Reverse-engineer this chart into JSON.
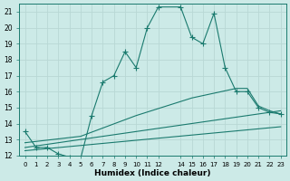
{
  "xlabel": "Humidex (Indice chaleur)",
  "bg_color": "#cceae7",
  "grid_color": "#b8d8d5",
  "line_color": "#1a7a6e",
  "ylim": [
    12,
    21.5
  ],
  "xlim": [
    -0.5,
    23.5
  ],
  "yticks": [
    12,
    13,
    14,
    15,
    16,
    17,
    18,
    19,
    20,
    21
  ],
  "xtick_positions": [
    0,
    1,
    2,
    3,
    4,
    5,
    6,
    7,
    8,
    9,
    10,
    11,
    12,
    14,
    15,
    16,
    17,
    18,
    19,
    20,
    21,
    22,
    23
  ],
  "xtick_labels": [
    "0",
    "1",
    "2",
    "3",
    "4",
    "5",
    "6",
    "7",
    "8",
    "9",
    "10",
    "11",
    "12",
    "14",
    "15",
    "16",
    "17",
    "18",
    "19",
    "20",
    "21",
    "22",
    "23"
  ],
  "main_x": [
    0,
    1,
    2,
    3,
    4,
    5,
    6,
    7,
    8,
    9,
    10,
    11,
    12,
    14,
    15,
    16,
    17,
    18,
    19,
    20,
    21,
    22,
    23
  ],
  "main_y": [
    13.5,
    12.5,
    12.5,
    12.1,
    11.9,
    11.8,
    14.5,
    16.6,
    17.0,
    18.5,
    17.5,
    20.0,
    21.3,
    21.3,
    19.4,
    19.0,
    20.9,
    17.5,
    16.0,
    16.0,
    15.0,
    14.7,
    14.6
  ],
  "line2_x": [
    0,
    5,
    10,
    15,
    19,
    20,
    21,
    22,
    23
  ],
  "line2_y": [
    12.8,
    13.2,
    14.5,
    15.6,
    16.2,
    16.2,
    15.1,
    14.8,
    14.6
  ],
  "line3_x": [
    0,
    23
  ],
  "line3_y": [
    12.5,
    14.8
  ],
  "line4_x": [
    0,
    23
  ],
  "line4_y": [
    12.3,
    13.8
  ]
}
